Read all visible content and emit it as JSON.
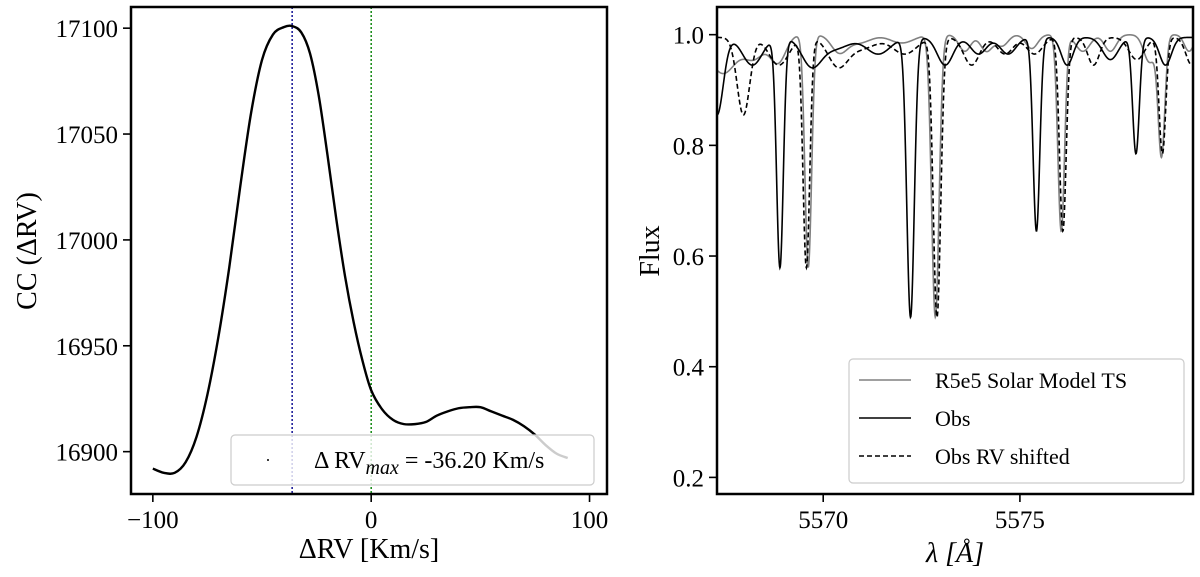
{
  "chart_data": [
    {
      "type": "line",
      "panel": "left",
      "title": "",
      "xlabel": "ΔRV [Km/s]",
      "ylabel": "CC (ΔRV)",
      "xlim": [
        -110,
        108
      ],
      "ylim": [
        16880,
        17110
      ],
      "xticks": [
        -100,
        0,
        100
      ],
      "xtick_labels": [
        "−100",
        "0",
        "100"
      ],
      "yticks": [
        16900,
        16950,
        17000,
        17050,
        17100
      ],
      "ytick_labels": [
        "16900",
        "16950",
        "17000",
        "17050",
        "17100"
      ],
      "series": [
        {
          "name": "CC",
          "color": "#000000",
          "x": [
            -100,
            -95,
            -90,
            -85,
            -80,
            -75,
            -70,
            -65,
            -60,
            -55,
            -50,
            -45,
            -40,
            -36.2,
            -32,
            -28,
            -24,
            -20,
            -16,
            -12,
            -8,
            -4,
            0,
            5,
            10,
            15,
            20,
            25,
            30,
            35,
            40,
            45,
            50,
            55,
            60,
            65,
            70,
            75,
            80,
            85,
            90
          ],
          "y": [
            16892,
            16890,
            16890,
            16895,
            16907,
            16927,
            16954,
            16987,
            17025,
            17060,
            17085,
            17097,
            17100.5,
            17101,
            17098,
            17088,
            17068,
            17040,
            17010,
            16983,
            16961,
            16943,
            16929,
            16920,
            16915,
            16913,
            16913,
            16914,
            16917,
            16919,
            16920.5,
            16921,
            16921,
            16919,
            16917,
            16915,
            16912,
            16908,
            16903,
            16899,
            16897
          ]
        }
      ],
      "vlines": [
        {
          "x": -36.2,
          "color": "#00008b",
          "style": "dotted"
        },
        {
          "x": 0,
          "color": "#008000",
          "style": "dotted"
        }
      ],
      "legend": {
        "position": "lower-right",
        "entries": [
          {
            "prefix": "Δ RV",
            "subscript": "max",
            "suffix": " = -36.20 Km/s"
          }
        ]
      }
    },
    {
      "type": "line",
      "panel": "right",
      "title": "",
      "xlabel": "λ [Å]",
      "ylabel": "Flux",
      "xlim": [
        5567.3,
        5579.4
      ],
      "ylim": [
        0.17,
        1.05
      ],
      "xticks": [
        5570,
        5575
      ],
      "xtick_labels": [
        "5570",
        "5575"
      ],
      "yticks": [
        0.2,
        0.4,
        0.6,
        0.8,
        1.0
      ],
      "ytick_labels": [
        "0.2",
        "0.4",
        "0.6",
        "0.8",
        "1.0"
      ],
      "series": [
        {
          "name": "R5e5 Solar Model TS",
          "color": "#808080",
          "style": "solid",
          "continuum": 1.0,
          "lines": [
            {
              "center": 5567.45,
              "depth": 0.07,
              "width": 0.35
            },
            {
              "center": 5568.25,
              "depth": 0.04,
              "width": 0.25
            },
            {
              "center": 5568.85,
              "depth": 0.05,
              "width": 0.2
            },
            {
              "center": 5569.62,
              "depth": 0.42,
              "width": 0.085
            },
            {
              "center": 5570.4,
              "depth": 0.03,
              "width": 0.2
            },
            {
              "center": 5570.9,
              "depth": 0.015,
              "width": 0.3
            },
            {
              "center": 5572.0,
              "depth": 0.015,
              "width": 0.3
            },
            {
              "center": 5572.85,
              "depth": 0.51,
              "width": 0.095
            },
            {
              "center": 5573.6,
              "depth": 0.03,
              "width": 0.15
            },
            {
              "center": 5574.15,
              "depth": 0.03,
              "width": 0.15
            },
            {
              "center": 5574.55,
              "depth": 0.02,
              "width": 0.15
            },
            {
              "center": 5575.3,
              "depth": 0.025,
              "width": 0.15
            },
            {
              "center": 5576.05,
              "depth": 0.355,
              "width": 0.085
            },
            {
              "center": 5576.6,
              "depth": 0.03,
              "width": 0.18
            },
            {
              "center": 5577.3,
              "depth": 0.03,
              "width": 0.15
            },
            {
              "center": 5578.3,
              "depth": 0.05,
              "width": 0.15
            },
            {
              "center": 5578.6,
              "depth": 0.215,
              "width": 0.085
            },
            {
              "center": 5579.3,
              "depth": 0.03,
              "width": 0.12
            }
          ]
        },
        {
          "name": "Obs",
          "color": "#000000",
          "style": "solid",
          "continuum": 0.995,
          "lines": [
            {
              "center": 5567.3,
              "depth": 0.14,
              "width": 0.16
            },
            {
              "center": 5568.2,
              "depth": 0.05,
              "width": 0.25
            },
            {
              "center": 5568.9,
              "depth": 0.415,
              "width": 0.085
            },
            {
              "center": 5569.7,
              "depth": 0.05,
              "width": 0.25
            },
            {
              "center": 5570.3,
              "depth": 0.02,
              "width": 0.35
            },
            {
              "center": 5571.4,
              "depth": 0.03,
              "width": 0.3
            },
            {
              "center": 5572.22,
              "depth": 0.505,
              "width": 0.095
            },
            {
              "center": 5573.1,
              "depth": 0.05,
              "width": 0.2
            },
            {
              "center": 5573.95,
              "depth": 0.03,
              "width": 0.2
            },
            {
              "center": 5574.7,
              "depth": 0.03,
              "width": 0.2
            },
            {
              "center": 5575.42,
              "depth": 0.35,
              "width": 0.085
            },
            {
              "center": 5576.2,
              "depth": 0.05,
              "width": 0.15
            },
            {
              "center": 5577.3,
              "depth": 0.04,
              "width": 0.2
            },
            {
              "center": 5577.95,
              "depth": 0.21,
              "width": 0.085
            },
            {
              "center": 5578.7,
              "depth": 0.05,
              "width": 0.15
            }
          ]
        },
        {
          "name": "Obs RV shifted",
          "color": "#000000",
          "style": "dashed",
          "shift": 0.672,
          "continuum": 0.995,
          "lines": [
            {
              "center": 5567.3,
              "depth": 0.14,
              "width": 0.16
            },
            {
              "center": 5568.2,
              "depth": 0.05,
              "width": 0.25
            },
            {
              "center": 5568.9,
              "depth": 0.415,
              "width": 0.085
            },
            {
              "center": 5569.7,
              "depth": 0.05,
              "width": 0.25
            },
            {
              "center": 5570.3,
              "depth": 0.02,
              "width": 0.35
            },
            {
              "center": 5571.4,
              "depth": 0.03,
              "width": 0.3
            },
            {
              "center": 5572.22,
              "depth": 0.505,
              "width": 0.095
            },
            {
              "center": 5573.1,
              "depth": 0.05,
              "width": 0.2
            },
            {
              "center": 5573.95,
              "depth": 0.03,
              "width": 0.2
            },
            {
              "center": 5574.7,
              "depth": 0.03,
              "width": 0.2
            },
            {
              "center": 5575.42,
              "depth": 0.35,
              "width": 0.085
            },
            {
              "center": 5576.2,
              "depth": 0.05,
              "width": 0.15
            },
            {
              "center": 5577.3,
              "depth": 0.04,
              "width": 0.2
            },
            {
              "center": 5577.95,
              "depth": 0.21,
              "width": 0.085
            },
            {
              "center": 5578.7,
              "depth": 0.05,
              "width": 0.15
            }
          ]
        }
      ],
      "legend": {
        "position": "lower-right",
        "entries": [
          {
            "label": "R5e5 Solar Model TS",
            "color": "#808080",
            "style": "solid"
          },
          {
            "label": "Obs",
            "color": "#000000",
            "style": "solid"
          },
          {
            "label": "Obs RV shifted",
            "color": "#000000",
            "style": "dashed"
          }
        ]
      }
    }
  ]
}
